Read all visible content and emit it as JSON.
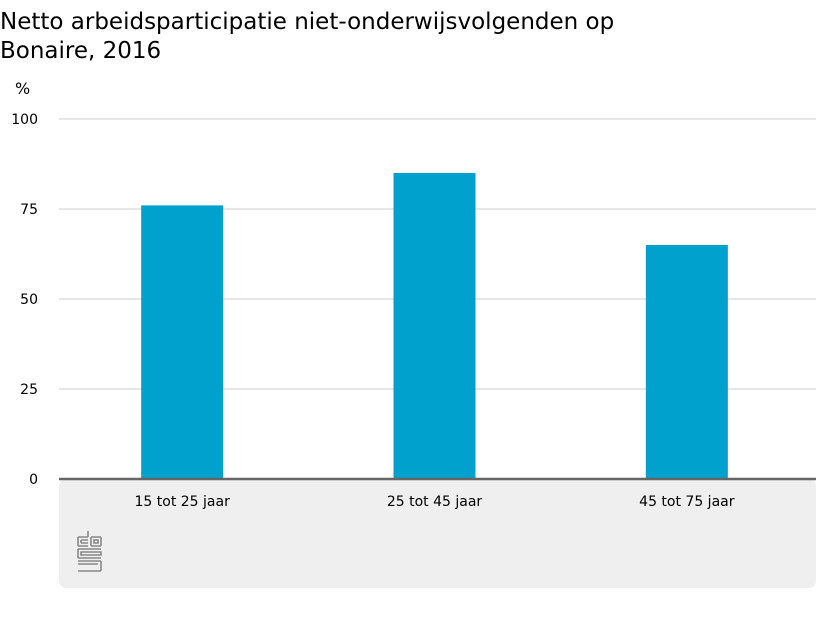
{
  "chart_data": {
    "type": "bar",
    "title": " Netto arbeidsparticipatie niet-onderwijsvolgenden op\nBonaire, 2016",
    "ylabel": "%",
    "xlabel": "",
    "categories": [
      "15 tot 25 jaar",
      "25 tot 45 jaar",
      "45 tot 75 jaar"
    ],
    "values": [
      76,
      85,
      65
    ],
    "ylim": [
      0,
      100
    ],
    "yticks": [
      0,
      25,
      50,
      75,
      100
    ],
    "grid": true,
    "bar_color": "#00a1cd",
    "grid_color": "#cccccc",
    "axis_color": "#666666",
    "footer_color": "#efefef"
  },
  "logo": {
    "icon": "cbs-logo-icon",
    "color": "#888888"
  }
}
